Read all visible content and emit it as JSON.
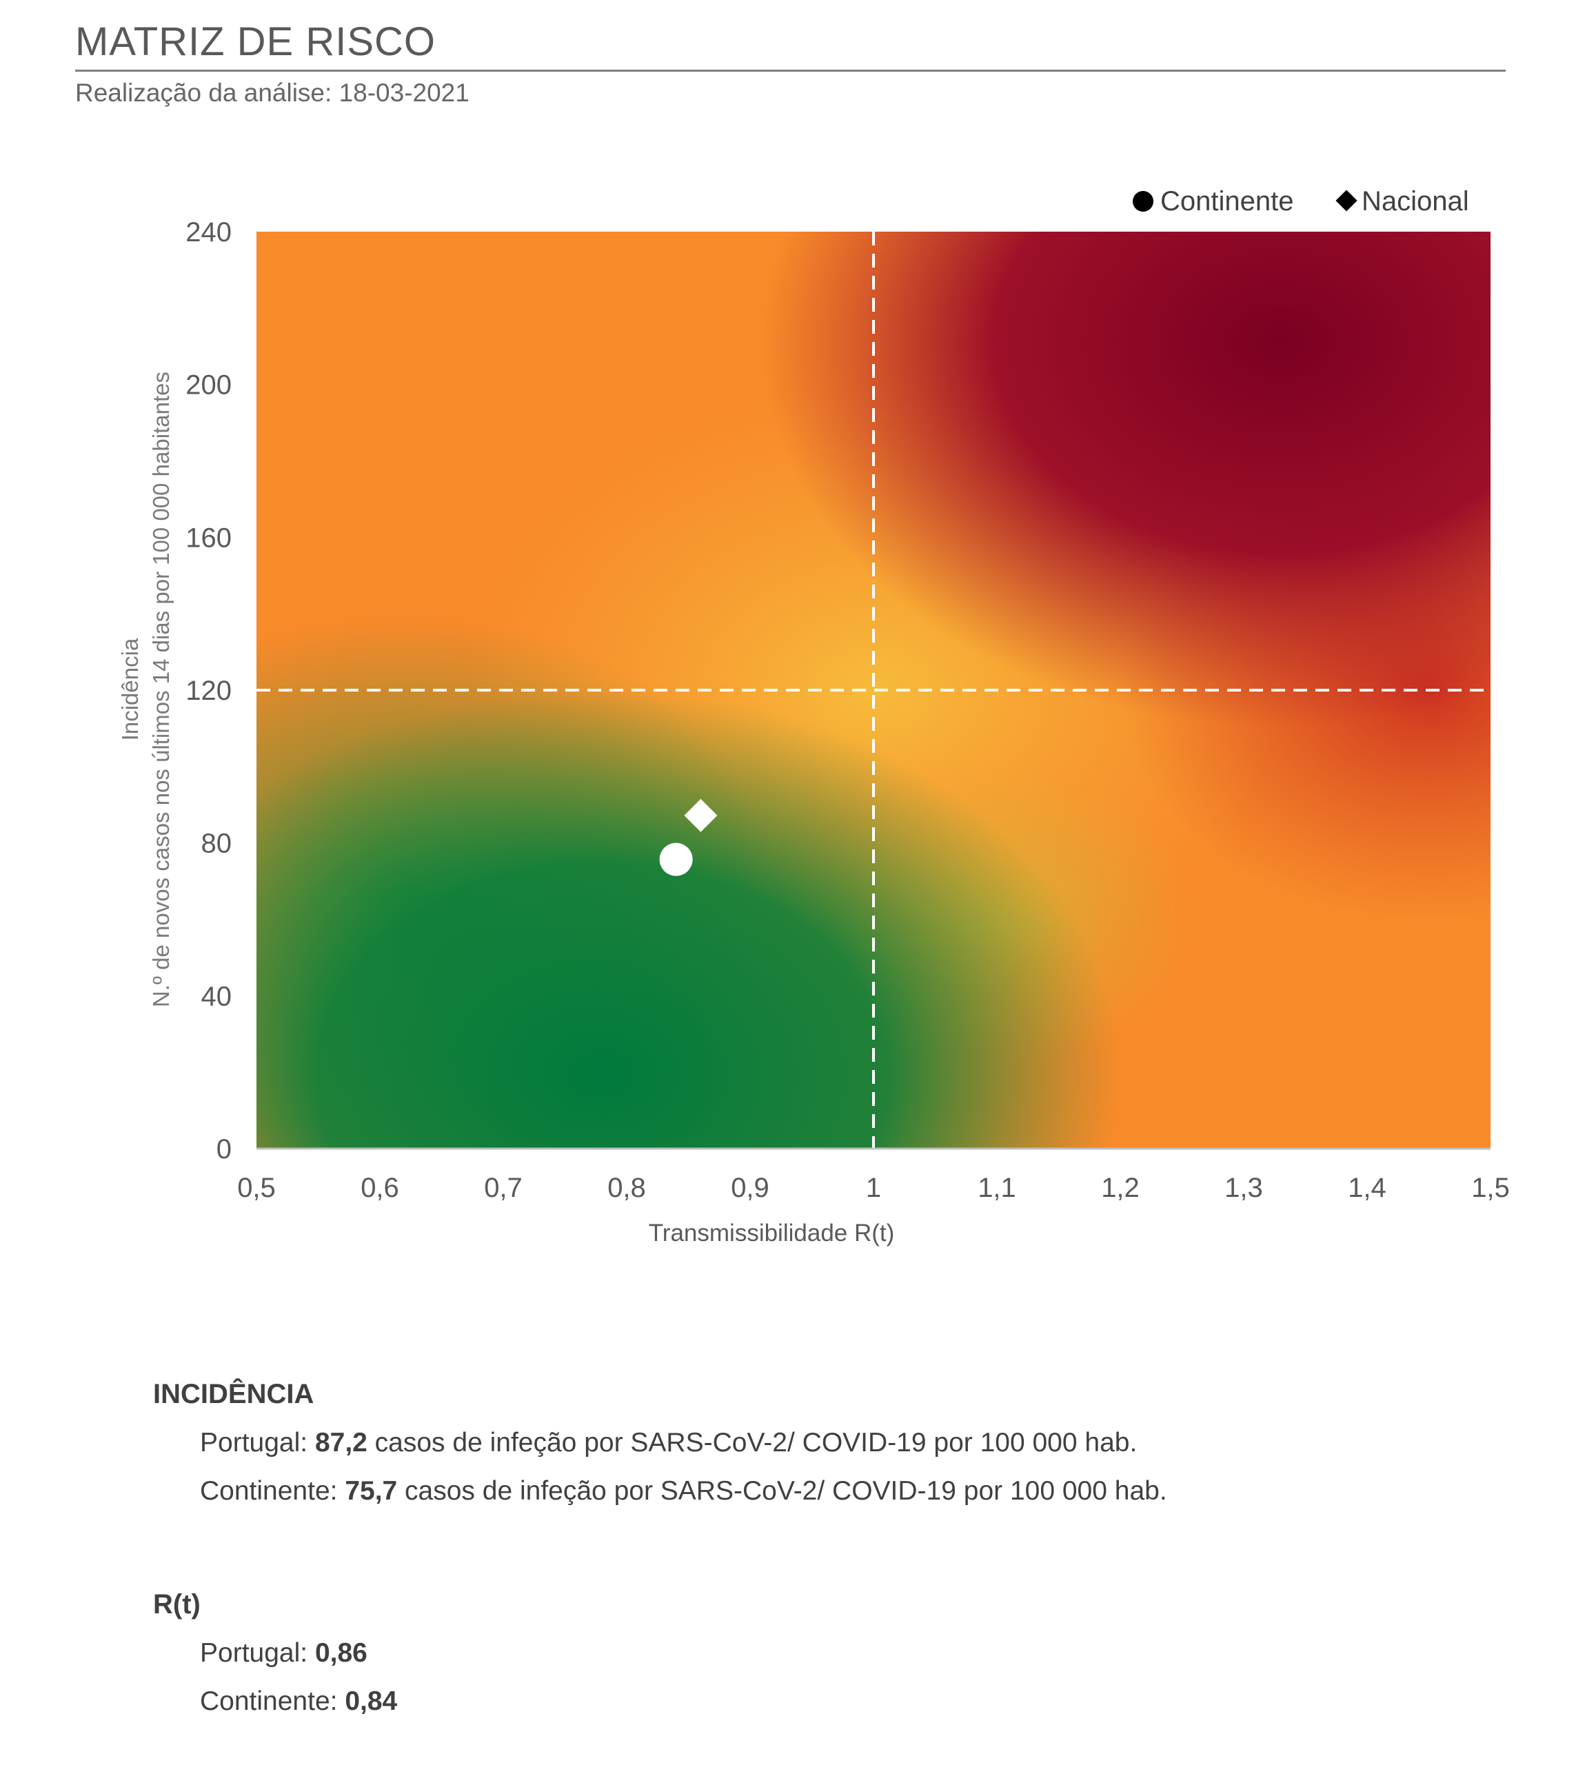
{
  "header": {
    "title": "MATRIZ DE RISCO",
    "subtitle": "Realização da análise: 18-03-2021"
  },
  "chart_data": {
    "type": "scatter",
    "title": "",
    "xlabel": "Transmissibilidade R(t)",
    "ylabel_line1": "Incidência",
    "ylabel_line2": "N.º de novos casos nos últimos 14 dias por 100 000 habitantes",
    "xlim": [
      0.5,
      1.5
    ],
    "ylim": [
      0,
      240
    ],
    "xticks": [
      "0,5",
      "0,6",
      "0,7",
      "0,8",
      "0,9",
      "1",
      "1,1",
      "1,2",
      "1,3",
      "1,4",
      "1,5"
    ],
    "yticks": [
      "0",
      "40",
      "80",
      "120",
      "160",
      "200",
      "240"
    ],
    "thresholds": {
      "x": 1,
      "y": 120
    },
    "background": "risk gradient green-yellow-orange-red",
    "legend_position": "top-right",
    "series": [
      {
        "name": "Continente",
        "marker": "circle",
        "x": 0.84,
        "y": 75.7,
        "color": "#ffffff"
      },
      {
        "name": "Nacional",
        "marker": "diamond",
        "x": 0.86,
        "y": 87.2,
        "color": "#ffffff"
      }
    ],
    "colors": {
      "green": "#007a3d",
      "yellow": "#f2b83a",
      "orange": "#fb6e1f",
      "darkred": "#7b0022"
    }
  },
  "incidencia": {
    "heading": "INCIDÊNCIA",
    "portugal_label": "Portugal: ",
    "portugal_value": "87,2",
    "continente_label": "Continente: ",
    "continente_value": "75,7",
    "suffix": " casos de infeção por SARS-CoV-2/ COVID-19 por 100 000 hab."
  },
  "rt": {
    "heading": "R(t)",
    "portugal_label": "Portugal: ",
    "portugal_value": "0,86",
    "continente_label": "Continente: ",
    "continente_value": "0,84"
  }
}
